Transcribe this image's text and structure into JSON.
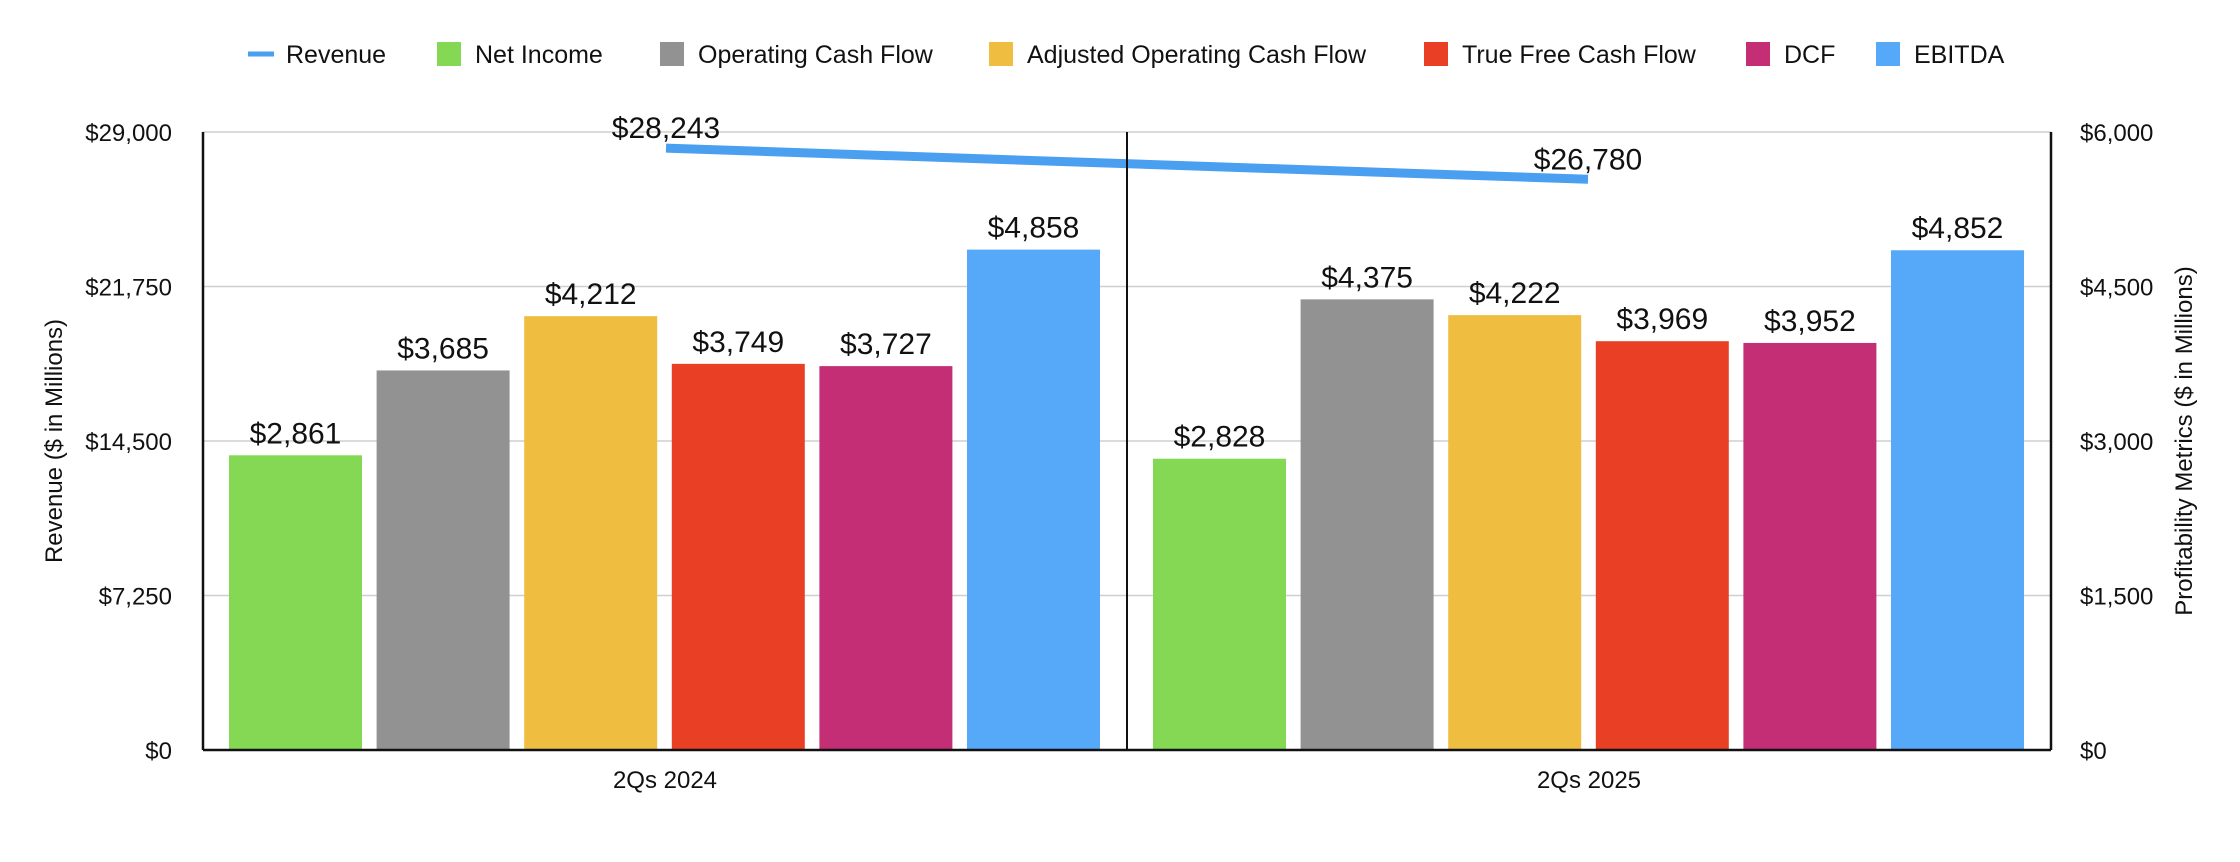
{
  "chart_data": {
    "type": "bar",
    "categories": [
      "2Qs 2024",
      "2Qs 2025"
    ],
    "series": [
      {
        "name": "Net Income",
        "axis": "right",
        "color": "#84d854",
        "values": [
          2861,
          2828
        ],
        "labels": [
          "$2,861",
          "$2,828"
        ]
      },
      {
        "name": "Operating Cash Flow",
        "axis": "right",
        "color": "#929292",
        "values": [
          3685,
          4375
        ],
        "labels": [
          "$3,685",
          "$4,375"
        ]
      },
      {
        "name": "Adjusted Operating Cash Flow",
        "axis": "right",
        "color": "#efbd40",
        "values": [
          4212,
          4222
        ],
        "labels": [
          "$4,212",
          "$4,222"
        ]
      },
      {
        "name": "True Free Cash Flow",
        "axis": "right",
        "color": "#e93f25",
        "values": [
          3749,
          3969
        ],
        "labels": [
          "$3,749",
          "$3,969"
        ]
      },
      {
        "name": "DCF",
        "axis": "right",
        "color": "#c32e74",
        "values": [
          3727,
          3952
        ],
        "labels": [
          "$3,727",
          "$3,952"
        ]
      },
      {
        "name": "EBITDA",
        "axis": "right",
        "color": "#55a9f8",
        "values": [
          4858,
          4852
        ],
        "labels": [
          "$4,858",
          "$4,852"
        ]
      }
    ],
    "line_series": {
      "name": "Revenue",
      "type": "line",
      "axis": "left",
      "color": "#4a9ff0",
      "values": [
        28243,
        26780
      ],
      "labels": [
        "$28,243",
        "$26,780"
      ]
    },
    "legend": [
      "Revenue",
      "Net Income",
      "Operating Cash Flow",
      "Adjusted Operating Cash Flow",
      "True Free Cash Flow",
      "DCF",
      "EBITDA"
    ],
    "legend_position": "top",
    "y_left": {
      "label": "Revenue ($ in Millions)",
      "ylim": [
        0,
        29000
      ],
      "ticks": [
        0,
        7250,
        14500,
        21750,
        29000
      ],
      "tick_labels": [
        "$0",
        "$7,250",
        "$14,500",
        "$21,750",
        "$29,000"
      ]
    },
    "y_right": {
      "label": "Profitability Metrics ($ in Millions)",
      "ylim": [
        0,
        6000
      ],
      "ticks": [
        0,
        1500,
        3000,
        4500,
        6000
      ],
      "tick_labels": [
        "$0",
        "$1,500",
        "$3,000",
        "$4,500",
        "$6,000"
      ]
    },
    "grid": true
  }
}
